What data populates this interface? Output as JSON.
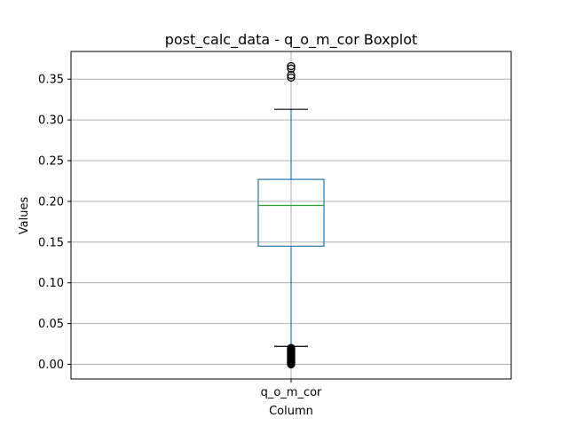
{
  "chart_data": {
    "type": "box",
    "title": "post_calc_data - q_o_m_cor Boxplot",
    "xlabel": "Column",
    "ylabel": "Values",
    "categories": [
      "q_o_m_cor"
    ],
    "ylim": [
      -0.018,
      0.384
    ],
    "yticks": [
      "0.00",
      "0.05",
      "0.10",
      "0.15",
      "0.20",
      "0.25",
      "0.30",
      "0.35"
    ],
    "ytick_values": [
      0.0,
      0.05,
      0.1,
      0.15,
      0.2,
      0.25,
      0.3,
      0.35
    ],
    "grid": true,
    "box": {
      "whisker_low": 0.022,
      "q1": 0.145,
      "median": 0.195,
      "q3": 0.227,
      "whisker_high": 0.313
    },
    "outliers_high": [
      0.352,
      0.355,
      0.363,
      0.366
    ],
    "outliers_low": [
      0.0,
      0.001,
      0.002,
      0.003,
      0.004,
      0.005,
      0.006,
      0.007,
      0.008,
      0.009,
      0.01,
      0.011,
      0.012,
      0.013,
      0.014,
      0.015,
      0.016,
      0.017,
      0.018,
      0.019,
      0.02
    ],
    "colors": {
      "box": "#1f77b4",
      "median": "#2ca02c",
      "grid": "#b0b0b0",
      "cap": "#000000",
      "outlier": "#000000"
    }
  }
}
